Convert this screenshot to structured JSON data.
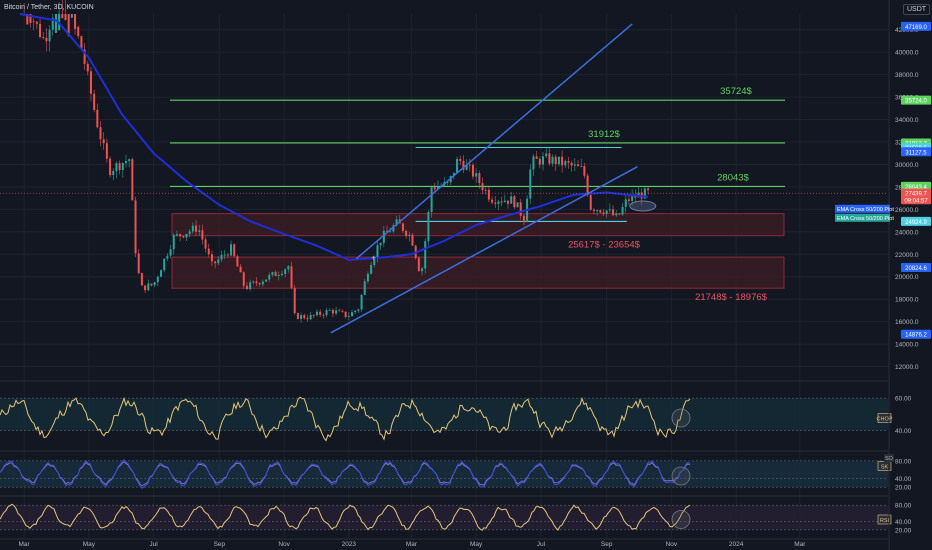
{
  "header": {
    "symbol_title": "Bitcoin / Tether, 3D, KUCOIN",
    "currency_button": "USDT"
  },
  "colors": {
    "background": "#131722",
    "candle_up": "#26a69a",
    "candle_down": "#ef5350",
    "ema": "#1f2fd6",
    "channel": "#3b6fe0",
    "level_line": "#5fd35f",
    "flat_line": "#4dd0e1",
    "zone_fill": "#3a1c24",
    "zone_border": "#8e2a3a",
    "zone_label": "#f05461",
    "indicator_line": "#e6c77a",
    "stoch_k": "#3f51d8",
    "stoch_d": "#8f7bd8"
  },
  "chart_data": {
    "type": "candlestick",
    "price_axis": {
      "ticks": [
        "42000.0",
        "40000.0",
        "38000.0",
        "36000.0",
        "34000.0",
        "32000.0",
        "30000.0",
        "28000.0",
        "26000.0",
        "24000.0",
        "22000.0",
        "20000.0",
        "18000.0",
        "16000.0",
        "14000.0",
        "12000.0"
      ],
      "ylim": [
        10800,
        43400
      ]
    },
    "time_axis": [
      "Mar",
      "May",
      "Jul",
      "Sep",
      "Nov",
      "2023",
      "Mar",
      "May",
      "Jul",
      "Sep",
      "Nov",
      "2024",
      "Mar"
    ],
    "price_path": [
      [
        "2022-03-01",
        44500
      ],
      [
        "2022-03-20",
        41000
      ],
      [
        "2022-04-05",
        46000
      ],
      [
        "2022-04-25",
        40000
      ],
      [
        "2022-05-08",
        34000
      ],
      [
        "2022-05-20",
        29500
      ],
      [
        "2022-06-08",
        30500
      ],
      [
        "2022-06-15",
        21000
      ],
      [
        "2022-06-20",
        19000
      ],
      [
        "2022-07-01",
        19300
      ],
      [
        "2022-07-20",
        23500
      ],
      [
        "2022-08-12",
        24400
      ],
      [
        "2022-08-25",
        21000
      ],
      [
        "2022-09-12",
        22500
      ],
      [
        "2022-09-25",
        19000
      ],
      [
        "2022-10-25",
        20300
      ],
      [
        "2022-11-06",
        21000
      ],
      [
        "2022-11-10",
        16500
      ],
      [
        "2022-11-25",
        16400
      ],
      [
        "2022-12-15",
        17000
      ],
      [
        "2022-12-31",
        16500
      ],
      [
        "2023-01-10",
        17200
      ],
      [
        "2023-01-20",
        21000
      ],
      [
        "2023-02-01",
        23500
      ],
      [
        "2023-02-16",
        24800
      ],
      [
        "2023-03-01",
        23500
      ],
      [
        "2023-03-10",
        20000
      ],
      [
        "2023-03-20",
        28000
      ],
      [
        "2023-04-05",
        28200
      ],
      [
        "2023-04-14",
        30500
      ],
      [
        "2023-04-28",
        29200
      ],
      [
        "2023-05-15",
        27000
      ],
      [
        "2023-06-05",
        26800
      ],
      [
        "2023-06-15",
        25200
      ],
      [
        "2023-06-22",
        30200
      ],
      [
        "2023-07-05",
        30500
      ],
      [
        "2023-07-15",
        30300
      ],
      [
        "2023-08-10",
        29500
      ],
      [
        "2023-08-17",
        26200
      ],
      [
        "2023-09-01",
        25900
      ],
      [
        "2023-09-11",
        25200
      ],
      [
        "2023-09-20",
        26800
      ],
      [
        "2023-10-01",
        27300
      ],
      [
        "2023-10-10",
        27439.7
      ]
    ],
    "ema_path": [
      [
        "2022-02-25",
        47000
      ],
      [
        "2022-04-01",
        42800
      ],
      [
        "2022-05-01",
        39500
      ],
      [
        "2022-06-01",
        34500
      ],
      [
        "2022-07-01",
        31000
      ],
      [
        "2022-08-01",
        28500
      ],
      [
        "2022-09-01",
        26400
      ],
      [
        "2022-10-01",
        24900
      ],
      [
        "2022-11-01",
        23800
      ],
      [
        "2022-12-01",
        22800
      ],
      [
        "2023-01-01",
        21500
      ],
      [
        "2023-02-01",
        21700
      ],
      [
        "2023-03-01",
        22000
      ],
      [
        "2023-04-01",
        23200
      ],
      [
        "2023-05-01",
        24600
      ],
      [
        "2023-06-01",
        25500
      ],
      [
        "2023-07-01",
        26300
      ],
      [
        "2023-08-01",
        27300
      ],
      [
        "2023-09-01",
        27500
      ],
      [
        "2023-10-01",
        27200
      ],
      [
        "2023-10-10",
        27100
      ]
    ],
    "channel_lines": [
      {
        "from": [
          "2022-12-15",
          15000
        ],
        "to": [
          "2023-09-30",
          29800
        ]
      },
      {
        "from": [
          "2023-01-08",
          21600
        ],
        "to": [
          "2023-09-25",
          42500
        ]
      }
    ],
    "resistance_levels": [
      {
        "price": 35724,
        "label": "35724$",
        "axis_tag": "35724.0"
      },
      {
        "price": 31912,
        "label": "31912$",
        "axis_tag": "31912.7"
      },
      {
        "price": 28043,
        "label": "28043$",
        "axis_tag": "28043.4"
      }
    ],
    "flat_lines": [
      {
        "price": 31508.5,
        "from": "2023-03-05",
        "to": "2023-09-15",
        "axis_tag": "31508.5"
      },
      {
        "price": 24924.9,
        "from": "2023-03-05",
        "to": "2023-09-20",
        "axis_tag": "24924.9"
      }
    ],
    "zones": [
      {
        "top": 25617,
        "bottom": 23654,
        "label": "25617$ - 23654$"
      },
      {
        "top": 21748,
        "bottom": 18976,
        "label": "21748$ - 18976$"
      }
    ],
    "axis_tags": [
      {
        "text": "47169.0",
        "price": 42300,
        "color": "#2962ff"
      },
      {
        "text": "35724.0",
        "price": 35724,
        "color": "#5fd35f"
      },
      {
        "text": "31912.7",
        "price": 31912.7,
        "color": "#5fd35f"
      },
      {
        "text": "31508.5",
        "price": 31508.5,
        "color": "#4dd0e1"
      },
      {
        "text": "31127.5",
        "price": 31127.5,
        "color": "#2962ff"
      },
      {
        "text": "28043.4",
        "price": 28043.4,
        "color": "#5fd35f"
      },
      {
        "text": "27439.7",
        "price": 27439.7,
        "color": "#ef5350"
      },
      {
        "text": "09:04:57",
        "price": 26850,
        "color": "#ef5350"
      },
      {
        "text": "24924.9",
        "price": 24924.9,
        "color": "#4dd0e1"
      },
      {
        "text": "20824.6",
        "price": 20824.6,
        "color": "#2962ff"
      },
      {
        "text": "14876.2",
        "price": 14876.2,
        "color": "#2962ff"
      }
    ],
    "legend_labels": [
      {
        "text": "EMA Cross 50/200 Plot",
        "price": 26050,
        "color": "#2962ff"
      },
      {
        "text": "EMA Cross 50/200 Plot",
        "price": 25250,
        "color": "#26a69a"
      }
    ],
    "price_line": 27439.7,
    "last_price": 27439.7,
    "countdown": "09:04:57",
    "indicators": [
      {
        "name": "CHOP",
        "ticks": [
          "60.00",
          "40.00"
        ],
        "tick_values": [
          60,
          40
        ],
        "ylim": [
          28,
          70
        ],
        "top": 382,
        "bottom": 450
      },
      {
        "name": "SK",
        "extra_tag": "SD",
        "ticks": [
          "80.00",
          "40.00",
          "20.00"
        ],
        "tick_values": [
          80,
          40,
          20
        ],
        "ylim": [
          0,
          100
        ],
        "top": 452,
        "bottom": 496
      },
      {
        "name": "RSI",
        "ticks": [
          "80.00",
          "40.00",
          "20.00"
        ],
        "tick_values": [
          80,
          40,
          20
        ],
        "ylim": [
          0,
          100
        ],
        "top": 497,
        "bottom": 538
      }
    ]
  }
}
